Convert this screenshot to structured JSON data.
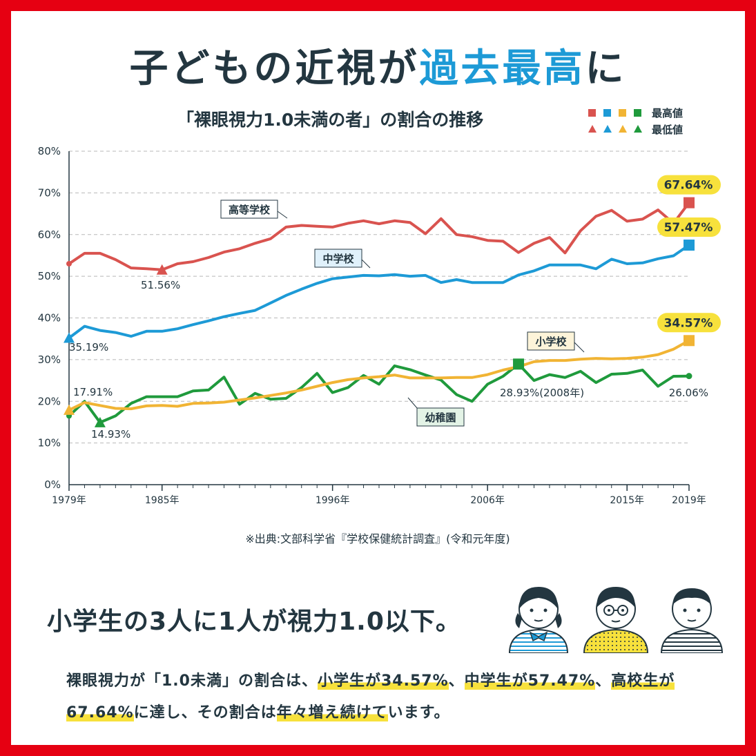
{
  "title_plain": "子どもの近視が",
  "title_highlight": "過去最高",
  "title_end": "に",
  "chart_data": {
    "type": "line",
    "title": "「裸眼視力1.0未満の者」の割合の推移",
    "legend": {
      "max_label": "最高値",
      "min_label": "最低値",
      "placement": "top-right"
    },
    "ylim": [
      0,
      80
    ],
    "xlim": [
      1979,
      2019
    ],
    "y_ticks": [
      "0%",
      "10%",
      "20%",
      "30%",
      "40%",
      "50%",
      "60%",
      "70%",
      "80%"
    ],
    "x_ticks": [
      {
        "value": 1979,
        "label": "1979年"
      },
      {
        "value": 1985,
        "label": "1985年"
      },
      {
        "value": 1996,
        "label": "1996年"
      },
      {
        "value": 2006,
        "label": "2006年"
      },
      {
        "value": 2015,
        "label": "2015年"
      },
      {
        "value": 2019,
        "label": "2019年"
      }
    ],
    "x": [
      1979,
      1980,
      1981,
      1982,
      1983,
      1984,
      1985,
      1986,
      1987,
      1988,
      1989,
      1990,
      1991,
      1992,
      1993,
      1994,
      1995,
      1996,
      1997,
      1998,
      1999,
      2000,
      2001,
      2002,
      2003,
      2004,
      2005,
      2006,
      2007,
      2008,
      2009,
      2010,
      2011,
      2012,
      2013,
      2014,
      2015,
      2016,
      2017,
      2018,
      2019
    ],
    "series": [
      {
        "name": "高等学校",
        "color": "#d9534f",
        "values": [
          53.0,
          55.5,
          55.5,
          54.0,
          52.0,
          51.8,
          51.56,
          53.0,
          53.5,
          54.5,
          55.8,
          56.6,
          57.9,
          59.0,
          61.8,
          62.2,
          62.0,
          61.8,
          62.7,
          63.3,
          62.6,
          63.3,
          62.9,
          60.2,
          63.8,
          60.0,
          59.5,
          58.6,
          58.4,
          55.7,
          57.9,
          59.3,
          55.6,
          60.9,
          64.4,
          65.8,
          63.2,
          63.7,
          65.9,
          62.7,
          67.64
        ],
        "max": {
          "x": 2019,
          "y": 67.64,
          "label": "67.64%"
        },
        "min": {
          "x": 1985,
          "y": 51.56,
          "label": "51.56%"
        }
      },
      {
        "name": "中学校",
        "color": "#1d9ad6",
        "values": [
          35.19,
          38.0,
          37.0,
          36.5,
          35.6,
          36.8,
          36.8,
          37.4,
          38.4,
          39.3,
          40.3,
          41.1,
          41.8,
          43.6,
          45.4,
          46.9,
          48.3,
          49.4,
          49.8,
          50.2,
          50.1,
          50.4,
          50.0,
          50.2,
          48.5,
          49.2,
          48.5,
          48.5,
          48.5,
          50.3,
          51.3,
          52.7,
          52.7,
          52.7,
          51.8,
          54.1,
          53.0,
          53.2,
          54.2,
          54.9,
          57.47
        ],
        "max": {
          "x": 2019,
          "y": 57.47,
          "label": "57.47%"
        },
        "min": {
          "x": 1979,
          "y": 35.19,
          "label": "35.19%"
        }
      },
      {
        "name": "小学校",
        "color": "#f1b434",
        "values": [
          17.91,
          19.7,
          19.0,
          18.3,
          18.2,
          18.9,
          19.0,
          18.8,
          19.5,
          19.6,
          19.8,
          20.3,
          20.8,
          21.4,
          22.0,
          22.7,
          23.6,
          24.5,
          25.2,
          25.6,
          25.9,
          26.3,
          25.6,
          25.6,
          25.6,
          25.7,
          25.7,
          26.4,
          27.5,
          28.3,
          29.5,
          29.8,
          29.8,
          30.1,
          30.3,
          30.2,
          30.3,
          30.6,
          31.2,
          32.5,
          34.57
        ],
        "max": {
          "x": 2019,
          "y": 34.57,
          "label": "34.57%"
        },
        "min": {
          "x": 1979,
          "y": 17.91,
          "label": "17.91%"
        }
      },
      {
        "name": "幼稚園",
        "color": "#1f9a3c",
        "values": [
          16.5,
          20.0,
          14.93,
          16.5,
          19.5,
          21.1,
          21.1,
          21.1,
          22.5,
          22.7,
          25.8,
          19.3,
          21.9,
          20.5,
          20.7,
          23.3,
          26.7,
          22.1,
          23.3,
          26.2,
          24.1,
          28.5,
          27.6,
          26.3,
          25.1,
          21.6,
          20.0,
          24.1,
          26.0,
          28.93,
          25.0,
          26.4,
          25.7,
          27.2,
          24.5,
          26.5,
          26.7,
          27.5,
          23.6,
          26.0,
          26.06
        ],
        "max": {
          "x": 2008,
          "y": 28.93,
          "label": "28.93%(2008年)"
        },
        "min": {
          "x": 1981,
          "y": 14.93,
          "label": "14.93%"
        },
        "end_label": "26.06%"
      }
    ],
    "grid": true,
    "source": "※出典:文部科学省『学校保健統計調査』(令和元年度)"
  },
  "subhead": "小学生の3人に1人が視力1.0以下。",
  "desc": {
    "p1": "裸眼視力が「1.0未満」の割合は、",
    "m1": "小学生が34.57%",
    "p2": "、",
    "m2": "中学生が57.47%",
    "p3": "、",
    "m3": "高校生が67.64%",
    "p4": "に達し、その割合は",
    "m4": "年々増え続けて",
    "p5": "います。"
  }
}
